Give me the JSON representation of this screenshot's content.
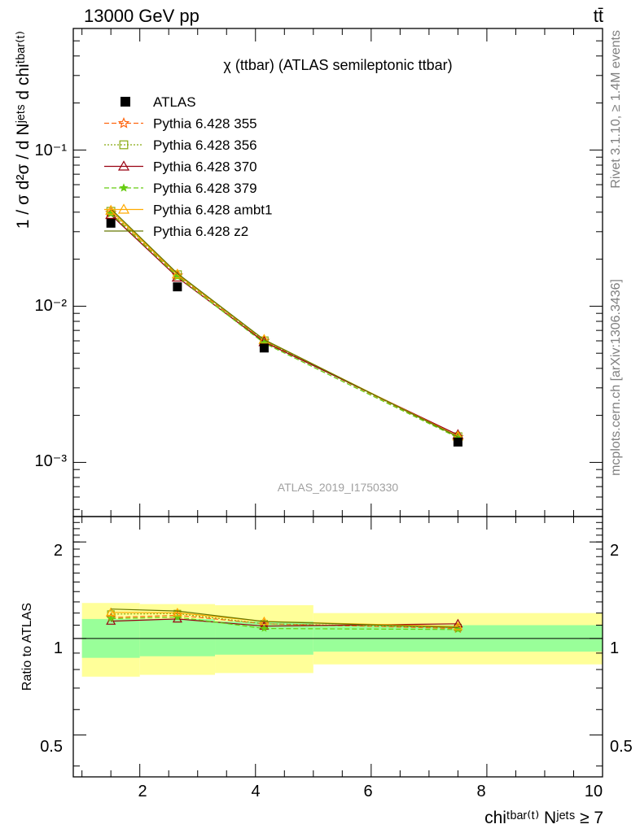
{
  "header": {
    "energy_label": "13000 GeV pp",
    "process_label": "tt̄"
  },
  "side_labels": {
    "rivet": "Rivet 3.1.10, ≥ 1.4M events",
    "mcplots": "mcplots.cern.ch [arXiv:1306.3436]"
  },
  "watermark": "ATLAS_2019_I1750330",
  "main_plot": {
    "title": "χ (ttbar) (ATLAS semileptonic ttbar)",
    "ylabel": "1 / σ d²σ / d Nʲᵉᵗˢ d chiᵗᵇᵃʳ⁽ᵗ⁾",
    "ytick_labels": [
      "10⁻¹",
      "10⁻²",
      "10⁻³"
    ]
  },
  "ratio_plot": {
    "ylabel": "Ratio to ATLAS",
    "ytick_labels": [
      "2",
      "1",
      "0.5"
    ]
  },
  "xaxis": {
    "label": "chiᵗᵇᵃʳ⁽ᵗ⁾ Nʲᵉᵗˢ ≥ 7",
    "tick_labels": [
      "2",
      "4",
      "6",
      "8",
      "10"
    ]
  },
  "chart_data": {
    "type": "line",
    "x_range": [
      0.85,
      10.0
    ],
    "y_scale": "log",
    "y_range": [
      0.00045,
      0.6
    ],
    "ratio_range": [
      0.37,
      2.4
    ],
    "bins": [
      [
        1.0,
        2.0
      ],
      [
        2.0,
        3.3
      ],
      [
        3.3,
        5.0
      ],
      [
        5.0,
        10.0
      ]
    ],
    "x": [
      1.5,
      2.65,
      4.15,
      7.5
    ],
    "data": {
      "name": "ATLAS",
      "values": [
        0.034,
        0.0133,
        0.0054,
        0.00135
      ]
    },
    "uncertainty_bands": {
      "inner": {
        "color": "#99ff99",
        "lo": [
          0.87,
          0.88,
          0.89,
          0.91
        ],
        "hi": [
          1.15,
          1.15,
          1.13,
          1.1
        ]
      },
      "outer": {
        "color": "#ffff99",
        "lo": [
          0.76,
          0.77,
          0.78,
          0.83
        ],
        "hi": [
          1.29,
          1.28,
          1.27,
          1.2
        ]
      }
    },
    "series": [
      {
        "name": "Pythia 6.428 355",
        "color": "#ff6611",
        "marker": "star-open",
        "dash": "6,3",
        "values": [
          0.0395,
          0.0157,
          0.006,
          0.00145
        ]
      },
      {
        "name": "Pythia 6.428 356",
        "color": "#88aa11",
        "marker": "square-open",
        "dash": "2,2",
        "values": [
          0.0405,
          0.0159,
          0.006,
          0.00146
        ]
      },
      {
        "name": "Pythia 6.428 370",
        "color": "#990011",
        "marker": "triangle-open",
        "dash": "",
        "values": [
          0.0385,
          0.0153,
          0.0059,
          0.0015
        ]
      },
      {
        "name": "Pythia 6.428 379",
        "color": "#66cc11",
        "marker": "star-filled",
        "dash": "6,3",
        "values": [
          0.0392,
          0.0155,
          0.0058,
          0.00144
        ]
      },
      {
        "name": "Pythia 6.428 ambt1",
        "color": "#ffaa00",
        "marker": "triangle-open",
        "dash": "",
        "values": [
          0.041,
          0.016,
          0.0061,
          0.00147
        ]
      },
      {
        "name": "Pythia 6.428 z2",
        "color": "#667700",
        "marker": "none",
        "dash": "",
        "values": [
          0.042,
          0.0162,
          0.0061,
          0.00146
        ]
      }
    ]
  }
}
